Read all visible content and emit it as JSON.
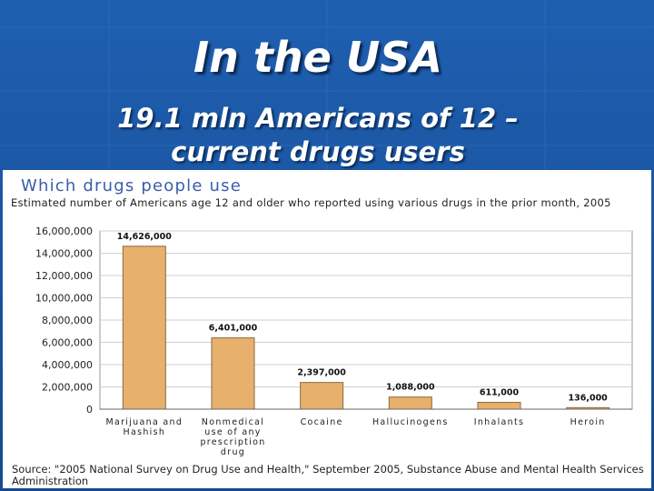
{
  "slide": {
    "title": "In the USA",
    "subtitle_line1": "19.1 mln Americans of 12 –",
    "subtitle_line2": "current drugs users"
  },
  "colors": {
    "background": "#1a56a3",
    "bar": "#e8b06d",
    "bar_stroke": "#8a6a3c",
    "chart_title": "#3b5dab"
  },
  "chart_data": {
    "type": "bar",
    "title": "Which drugs people use",
    "subtitle": "Estimated number of Americans age 12 and older who reported using various drugs in the prior month, 2005",
    "categories": [
      [
        "Marijuana and",
        "Hashish"
      ],
      [
        "Nonmedical",
        "use of any",
        "prescription",
        "drug"
      ],
      [
        "Cocaine"
      ],
      [
        "Hallucinogens"
      ],
      [
        "Inhalants"
      ],
      [
        "Heroin"
      ]
    ],
    "values": [
      14626000,
      6401000,
      2397000,
      1088000,
      611000,
      136000
    ],
    "value_labels": [
      "14,626,000",
      "6,401,000",
      "2,397,000",
      "1,088,000",
      "611,000",
      "136,000"
    ],
    "y_ticks": [
      0,
      2000000,
      4000000,
      6000000,
      8000000,
      10000000,
      12000000,
      14000000,
      16000000
    ],
    "y_tick_labels": [
      "0",
      "2,000,000",
      "4,000,000",
      "6,000,000",
      "8,000,000",
      "10,000,000",
      "12,000,000",
      "14,000,000",
      "16,000,000"
    ],
    "ylim": [
      0,
      16000000
    ],
    "grid": true,
    "source": "Source: \"2005 National Survey on Drug Use and Health,\" September 2005, Substance Abuse and Mental Health Services Administration"
  }
}
